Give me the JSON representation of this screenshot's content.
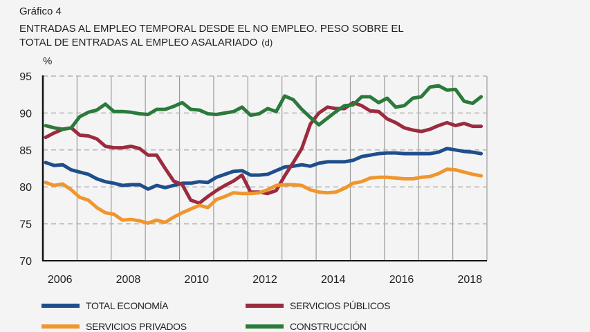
{
  "figure": {
    "label": "Gráfico 4",
    "title_line1": "ENTRADAS AL EMPLEO TEMPORAL DESDE EL NO EMPLEO. PESO SOBRE EL",
    "title_line2": "TOTAL DE ENTRADAS AL EMPLEO ASALARIADO",
    "title_note": "(d)"
  },
  "chart_data": {
    "type": "line",
    "title": "ENTRADAS AL EMPLEO TEMPORAL DESDE EL NO EMPLEO. PESO SOBRE EL TOTAL DE ENTRADAS AL EMPLEO ASALARIADO (d)",
    "xlabel": "",
    "ylabel": "%",
    "ylim": [
      70,
      95
    ],
    "yticks": [
      70,
      75,
      80,
      85,
      90,
      95
    ],
    "xlim": [
      2006,
      2019
    ],
    "xtick_labels": [
      "2006",
      "2008",
      "2010",
      "2012",
      "2014",
      "2016",
      "2018"
    ],
    "xtick_years": [
      2006,
      2008,
      2010,
      2012,
      2014,
      2016,
      2018
    ],
    "grid": "horizontal dashed at y ticks, vertical solid at year boundaries",
    "frequency": "quarterly",
    "x_start": "2006Q1",
    "x_end": "2018Q4",
    "legend_position": "bottom",
    "series": [
      {
        "name": "TOTAL ECONOMÍA",
        "color": "#1f4e8c",
        "values": [
          83.3,
          82.9,
          83.0,
          82.3,
          82.0,
          81.7,
          81.1,
          80.7,
          80.5,
          80.2,
          80.3,
          80.3,
          79.7,
          80.2,
          79.9,
          80.2,
          80.5,
          80.5,
          80.7,
          80.6,
          81.3,
          81.7,
          82.1,
          82.2,
          81.6,
          81.6,
          81.7,
          82.2,
          82.7,
          82.8,
          83.0,
          82.8,
          83.2,
          83.4,
          83.4,
          83.4,
          83.6,
          84.1,
          84.3,
          84.5,
          84.6,
          84.6,
          84.5,
          84.5,
          84.5,
          84.5,
          84.7,
          85.2,
          85.0,
          84.8,
          84.7,
          84.5
        ]
      },
      {
        "name": "SERVICIOS PÚBLICOS",
        "color": "#9b2c3e",
        "values": [
          86.7,
          87.3,
          87.8,
          88.0,
          87.0,
          86.9,
          86.5,
          85.5,
          85.3,
          85.3,
          85.5,
          85.2,
          84.3,
          84.3,
          82.5,
          80.8,
          80.3,
          78.2,
          77.8,
          78.7,
          79.5,
          80.2,
          80.8,
          81.6,
          79.3,
          79.3,
          79.1,
          79.5,
          81.5,
          83.3,
          85.2,
          88.5,
          90.0,
          90.8,
          90.6,
          90.6,
          91.4,
          91.0,
          90.3,
          90.2,
          89.2,
          88.7,
          88.0,
          87.7,
          87.5,
          87.8,
          88.3,
          88.7,
          88.3,
          88.6,
          88.2,
          88.2
        ]
      },
      {
        "name": "SERVICIOS PRIVADOS",
        "color": "#f0962e",
        "values": [
          80.6,
          80.2,
          80.4,
          79.6,
          78.6,
          78.2,
          77.2,
          76.5,
          76.3,
          75.5,
          75.6,
          75.4,
          75.1,
          75.5,
          75.2,
          75.9,
          76.5,
          77.0,
          77.5,
          77.2,
          78.3,
          78.7,
          79.2,
          79.1,
          79.1,
          79.2,
          79.6,
          80.2,
          80.3,
          80.3,
          80.2,
          79.6,
          79.3,
          79.2,
          79.3,
          79.8,
          80.5,
          80.7,
          81.2,
          81.3,
          81.3,
          81.2,
          81.1,
          81.1,
          81.3,
          81.4,
          81.8,
          82.4,
          82.3,
          82.0,
          81.7,
          81.5
        ]
      },
      {
        "name": "CONSTRUCCIÓN",
        "color": "#2b7a3b",
        "values": [
          88.3,
          88.0,
          87.8,
          88.0,
          89.5,
          90.1,
          90.4,
          91.2,
          90.2,
          90.2,
          90.1,
          89.9,
          89.8,
          90.5,
          90.5,
          90.9,
          91.4,
          90.5,
          90.4,
          89.9,
          89.8,
          90.0,
          90.2,
          90.8,
          89.7,
          89.9,
          90.6,
          90.2,
          92.3,
          91.8,
          90.5,
          89.4,
          88.4,
          89.3,
          90.2,
          91.0,
          91.1,
          92.2,
          92.2,
          91.4,
          92.0,
          90.8,
          91.0,
          92.0,
          92.2,
          93.5,
          93.7,
          93.1,
          93.2,
          91.6,
          91.3,
          92.2
        ]
      }
    ]
  },
  "legend": {
    "items": [
      {
        "label": "TOTAL ECONOMÍA",
        "color": "#1f4e8c"
      },
      {
        "label": "SERVICIOS PÚBLICOS",
        "color": "#9b2c3e"
      },
      {
        "label": "SERVICIOS PRIVADOS",
        "color": "#f0962e"
      },
      {
        "label": "CONSTRUCCIÓN",
        "color": "#2b7a3b"
      }
    ]
  }
}
